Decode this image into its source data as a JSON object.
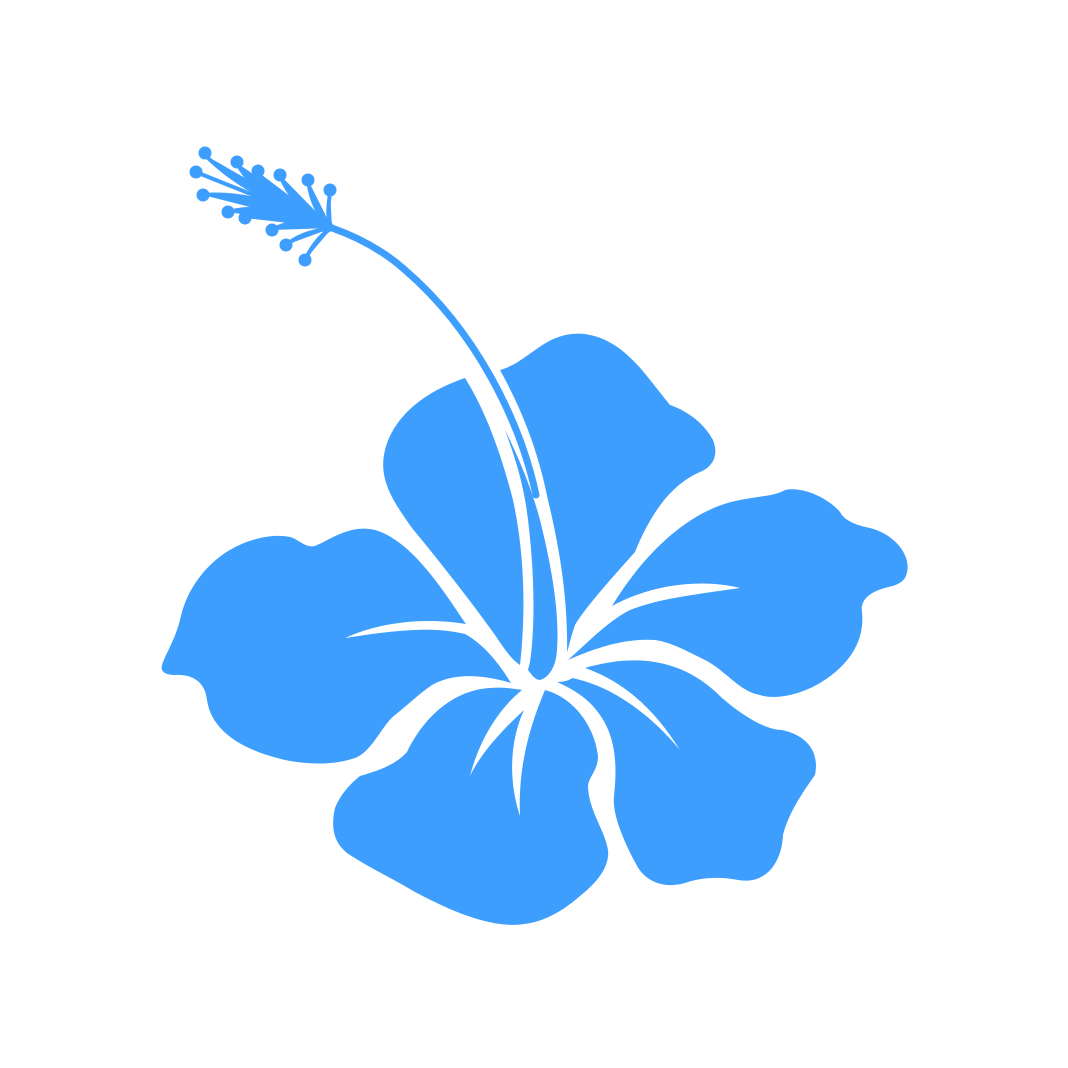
{
  "image": {
    "subject": "hibiscus-flower-silhouette",
    "background_color": "#ffffff",
    "fill_color": "#3d9efe",
    "gap_color": "#ffffff"
  }
}
